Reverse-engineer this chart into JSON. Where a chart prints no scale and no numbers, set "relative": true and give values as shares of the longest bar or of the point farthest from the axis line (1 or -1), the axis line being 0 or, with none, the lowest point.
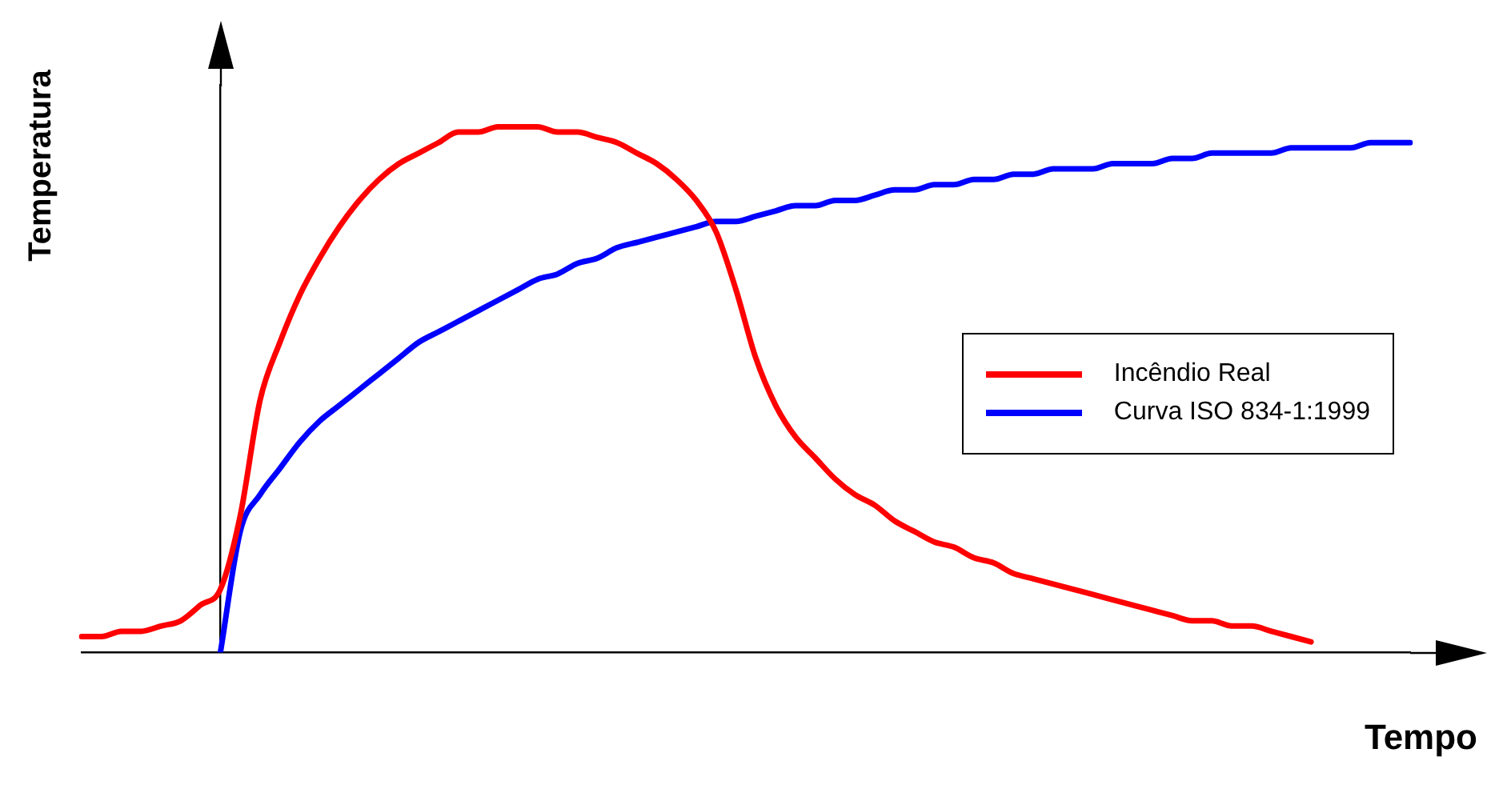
{
  "chart_data": {
    "type": "line",
    "relative": true,
    "xlabel": "Tempo",
    "ylabel": "Temperatura",
    "legend": "right",
    "grid": false,
    "marker": "none",
    "line_style": "solid",
    "categories": [
      null,
      null,
      null,
      null,
      null,
      null,
      null,
      null,
      null,
      null,
      null,
      null,
      null,
      null,
      null,
      null,
      null,
      null,
      null,
      null,
      null,
      null,
      null,
      null,
      null,
      null,
      null,
      null,
      null,
      null,
      null,
      null,
      null,
      null,
      null,
      null,
      null,
      null,
      null,
      null,
      null,
      null,
      null,
      null,
      null,
      null,
      null,
      null,
      null,
      null,
      null,
      null,
      null,
      null,
      null,
      null,
      null,
      null,
      null,
      null,
      null,
      null,
      null,
      null,
      null,
      null,
      null,
      null
    ],
    "series": [
      {
        "name": "Incêndio Real",
        "color": "#ff0000",
        "values": [
          0.03,
          0.03,
          0.04,
          0.04,
          0.05,
          0.06,
          0.09,
          0.12,
          0.26,
          0.48,
          0.59,
          0.68,
          0.75,
          0.81,
          0.86,
          0.9,
          0.93,
          0.95,
          0.97,
          0.99,
          0.99,
          1,
          1,
          1,
          0.99,
          0.99,
          0.98,
          0.97,
          0.95,
          0.93,
          0.9,
          0.86,
          0.8,
          0.69,
          0.56,
          0.47,
          0.41,
          0.37,
          0.33,
          0.3,
          0.28,
          0.25,
          0.23,
          0.21,
          0.2,
          0.18,
          0.17,
          0.15,
          0.14,
          0.13,
          0.12,
          0.11,
          0.1,
          0.09,
          0.08,
          0.07,
          0.06,
          0.06,
          0.05,
          0.05,
          0.04,
          0.03,
          0.02,
          null,
          null,
          null,
          null,
          null
        ]
      },
      {
        "name": "Curva ISO 834-1:1999",
        "color": "#0000ff",
        "values": [
          null,
          null,
          null,
          null,
          null,
          null,
          null,
          0,
          0.23,
          0.3,
          0.35,
          0.4,
          0.44,
          0.47,
          0.5,
          0.53,
          0.56,
          0.59,
          0.61,
          0.63,
          0.65,
          0.67,
          0.69,
          0.71,
          0.72,
          0.74,
          0.75,
          0.77,
          0.78,
          0.79,
          0.8,
          0.81,
          0.82,
          0.82,
          0.83,
          0.84,
          0.85,
          0.85,
          0.86,
          0.86,
          0.87,
          0.88,
          0.88,
          0.89,
          0.89,
          0.9,
          0.9,
          0.91,
          0.91,
          0.92,
          0.92,
          0.92,
          0.93,
          0.93,
          0.93,
          0.94,
          0.94,
          0.95,
          0.95,
          0.95,
          0.95,
          0.96,
          0.96,
          0.96,
          0.96,
          0.97,
          0.97,
          0.97
        ]
      }
    ]
  }
}
